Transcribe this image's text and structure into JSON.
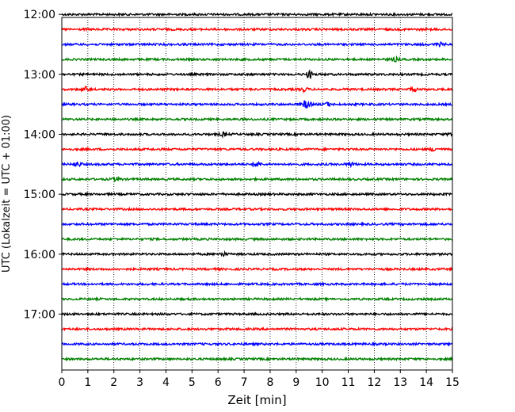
{
  "chart_data": {
    "type": "line",
    "title": "",
    "xlabel": "Zeit  [min]",
    "ylabel": "UTC (Lokalzeit = UTC + 01:00)",
    "xlim": [
      0,
      15
    ],
    "x_ticks": [
      "0",
      "1",
      "2",
      "3",
      "4",
      "5",
      "6",
      "7",
      "8",
      "9",
      "10",
      "11",
      "12",
      "13",
      "14",
      "15"
    ],
    "y_ticks": [
      {
        "label": "12:00",
        "minutes": 720
      },
      {
        "label": "13:00",
        "minutes": 780
      },
      {
        "label": "14:00",
        "minutes": 840
      },
      {
        "label": "15:00",
        "minutes": 900
      },
      {
        "label": "16:00",
        "minutes": 960
      },
      {
        "label": "17:00",
        "minutes": 1020
      }
    ],
    "ylim_minutes": [
      723,
      1076
    ],
    "grid": "vertical dotted at each minute",
    "trace_colors": [
      "#000000",
      "#ff0000",
      "#0000ff",
      "#008000"
    ],
    "traces": [
      {
        "start": "12:00",
        "events": []
      },
      {
        "start": "12:15",
        "events": []
      },
      {
        "start": "12:30",
        "events": [
          {
            "t": 14.5,
            "amp": 2
          }
        ]
      },
      {
        "start": "12:45",
        "events": [
          {
            "t": 12.8,
            "amp": 2
          }
        ]
      },
      {
        "start": "13:00",
        "events": [
          {
            "t": 9.5,
            "amp": 4
          }
        ]
      },
      {
        "start": "13:15",
        "events": [
          {
            "t": 0.9,
            "amp": 2.5
          },
          {
            "t": 9.3,
            "amp": 2
          },
          {
            "t": 13.5,
            "amp": 2
          }
        ]
      },
      {
        "start": "13:30",
        "events": [
          {
            "t": 9.4,
            "amp": 5
          },
          {
            "t": 10.2,
            "amp": 2
          }
        ]
      },
      {
        "start": "13:45",
        "events": []
      },
      {
        "start": "14:00",
        "events": [
          {
            "t": 6.2,
            "amp": 2
          },
          {
            "t": 15.0,
            "amp": 2.5
          }
        ]
      },
      {
        "start": "14:15",
        "events": [
          {
            "t": 14.3,
            "amp": 2
          }
        ]
      },
      {
        "start": "14:30",
        "events": [
          {
            "t": 0.6,
            "amp": 2.5
          },
          {
            "t": 7.5,
            "amp": 2.5
          },
          {
            "t": 11.1,
            "amp": 2
          }
        ]
      },
      {
        "start": "14:45",
        "events": [
          {
            "t": 2.1,
            "amp": 2
          }
        ]
      },
      {
        "start": "15:00",
        "events": []
      },
      {
        "start": "15:15",
        "events": []
      },
      {
        "start": "15:30",
        "events": []
      },
      {
        "start": "15:45",
        "events": []
      },
      {
        "start": "16:00",
        "events": [
          {
            "t": 6.2,
            "amp": 2
          }
        ]
      },
      {
        "start": "16:15",
        "events": []
      },
      {
        "start": "16:30",
        "events": []
      },
      {
        "start": "16:45",
        "events": []
      },
      {
        "start": "17:00",
        "events": []
      },
      {
        "start": "17:15",
        "events": []
      },
      {
        "start": "17:30",
        "events": []
      },
      {
        "start": "17:45",
        "events": []
      }
    ]
  }
}
